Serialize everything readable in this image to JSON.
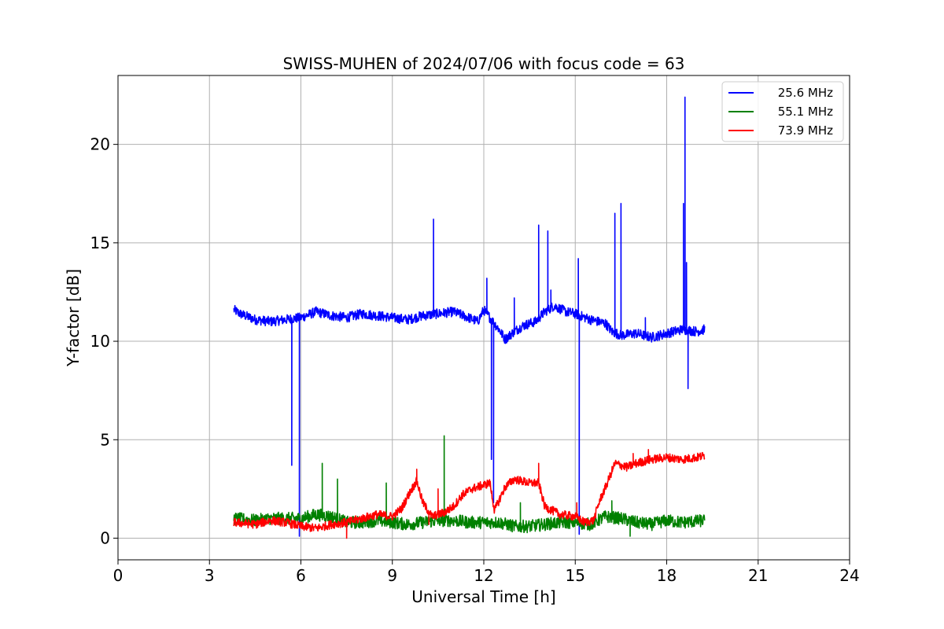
{
  "chart_data": {
    "type": "line",
    "title": "SWISS-MUHEN of 2024/07/06 with focus code = 63",
    "xlabel": "Universal Time [h]",
    "ylabel": "Y-factor [dB]",
    "xlim": [
      0,
      24
    ],
    "ylim": [
      -1.1,
      23.5
    ],
    "xticks": [
      0,
      3,
      6,
      9,
      12,
      15,
      18,
      21,
      24
    ],
    "yticks": [
      0,
      5,
      10,
      15,
      20
    ],
    "grid": true,
    "legend_position": "top-right",
    "series": [
      {
        "name": "25.6 MHz",
        "color": "#0000ff",
        "base": [
          [
            3.8,
            11.6
          ],
          [
            4.0,
            11.4
          ],
          [
            4.5,
            11.1
          ],
          [
            5.0,
            11.0
          ],
          [
            5.5,
            11.1
          ],
          [
            6.0,
            11.2
          ],
          [
            6.5,
            11.5
          ],
          [
            7.0,
            11.3
          ],
          [
            7.5,
            11.2
          ],
          [
            8.0,
            11.4
          ],
          [
            8.5,
            11.3
          ],
          [
            9.0,
            11.2
          ],
          [
            9.5,
            11.1
          ],
          [
            10.0,
            11.3
          ],
          [
            10.5,
            11.4
          ],
          [
            11.0,
            11.5
          ],
          [
            11.5,
            11.2
          ],
          [
            11.8,
            11.0
          ],
          [
            12.0,
            11.6
          ],
          [
            12.2,
            11.2
          ],
          [
            12.5,
            10.6
          ],
          [
            12.7,
            10.1
          ],
          [
            13.0,
            10.5
          ],
          [
            13.3,
            10.8
          ],
          [
            13.7,
            11.0
          ],
          [
            14.0,
            11.5
          ],
          [
            14.3,
            11.8
          ],
          [
            14.7,
            11.5
          ],
          [
            15.0,
            11.4
          ],
          [
            15.5,
            11.1
          ],
          [
            16.0,
            10.9
          ],
          [
            16.2,
            10.5
          ],
          [
            16.5,
            10.3
          ],
          [
            17.0,
            10.4
          ],
          [
            17.5,
            10.2
          ],
          [
            18.0,
            10.4
          ],
          [
            18.5,
            10.6
          ],
          [
            19.0,
            10.5
          ],
          [
            19.25,
            10.6
          ]
        ],
        "noise": 0.25,
        "spikes": [
          [
            5.7,
            3.7
          ],
          [
            5.95,
            0.1
          ],
          [
            10.35,
            16.2
          ],
          [
            12.1,
            13.2
          ],
          [
            12.25,
            4.0
          ],
          [
            12.32,
            1.8
          ],
          [
            13.0,
            12.2
          ],
          [
            13.8,
            15.9
          ],
          [
            14.1,
            15.6
          ],
          [
            14.2,
            12.6
          ],
          [
            15.1,
            14.2
          ],
          [
            15.13,
            0.2
          ],
          [
            16.3,
            16.5
          ],
          [
            16.5,
            17.0
          ],
          [
            17.3,
            11.2
          ],
          [
            18.55,
            17.0
          ],
          [
            18.6,
            22.4
          ],
          [
            18.65,
            14.0
          ],
          [
            18.7,
            7.6
          ]
        ]
      },
      {
        "name": "55.1 MHz",
        "color": "#008000",
        "base": [
          [
            3.8,
            1.0
          ],
          [
            4.5,
            0.9
          ],
          [
            5.0,
            1.0
          ],
          [
            5.5,
            1.0
          ],
          [
            6.0,
            1.0
          ],
          [
            6.5,
            1.2
          ],
          [
            7.0,
            1.1
          ],
          [
            7.5,
            0.8
          ],
          [
            8.0,
            0.8
          ],
          [
            8.5,
            0.9
          ],
          [
            9.0,
            0.8
          ],
          [
            9.5,
            0.7
          ],
          [
            10.0,
            0.8
          ],
          [
            10.5,
            0.9
          ],
          [
            11.0,
            0.9
          ],
          [
            11.5,
            0.8
          ],
          [
            12.0,
            0.8
          ],
          [
            12.5,
            0.8
          ],
          [
            13.0,
            0.6
          ],
          [
            13.5,
            0.6
          ],
          [
            14.0,
            0.7
          ],
          [
            14.5,
            0.8
          ],
          [
            15.0,
            0.8
          ],
          [
            15.5,
            0.7
          ],
          [
            16.0,
            1.1
          ],
          [
            16.5,
            1.0
          ],
          [
            17.0,
            0.8
          ],
          [
            17.5,
            0.7
          ],
          [
            18.0,
            0.9
          ],
          [
            18.5,
            0.8
          ],
          [
            19.25,
            0.9
          ]
        ],
        "noise": 0.32,
        "spikes": [
          [
            6.7,
            3.8
          ],
          [
            7.2,
            3.0
          ],
          [
            8.8,
            2.8
          ],
          [
            10.7,
            5.2
          ],
          [
            13.2,
            1.8
          ],
          [
            16.2,
            1.9
          ],
          [
            16.8,
            0.1
          ]
        ]
      },
      {
        "name": "73.9 MHz",
        "color": "#ff0000",
        "base": [
          [
            3.8,
            0.8
          ],
          [
            4.5,
            0.7
          ],
          [
            5.0,
            0.9
          ],
          [
            5.5,
            0.8
          ],
          [
            6.0,
            0.6
          ],
          [
            6.5,
            0.5
          ],
          [
            7.0,
            0.7
          ],
          [
            7.5,
            0.8
          ],
          [
            8.0,
            1.0
          ],
          [
            8.5,
            1.2
          ],
          [
            9.0,
            1.1
          ],
          [
            9.3,
            1.5
          ],
          [
            9.6,
            2.4
          ],
          [
            9.8,
            2.9
          ],
          [
            10.0,
            1.8
          ],
          [
            10.3,
            1.1
          ],
          [
            10.7,
            1.3
          ],
          [
            11.0,
            1.6
          ],
          [
            11.3,
            2.2
          ],
          [
            11.6,
            2.5
          ],
          [
            12.0,
            2.7
          ],
          [
            12.2,
            2.8
          ],
          [
            12.35,
            1.4
          ],
          [
            12.7,
            2.6
          ],
          [
            13.0,
            3.0
          ],
          [
            13.5,
            2.8
          ],
          [
            13.8,
            2.8
          ],
          [
            14.0,
            1.6
          ],
          [
            14.5,
            1.2
          ],
          [
            15.0,
            1.1
          ],
          [
            15.3,
            0.8
          ],
          [
            15.6,
            0.9
          ],
          [
            15.8,
            1.9
          ],
          [
            16.0,
            2.6
          ],
          [
            16.3,
            3.8
          ],
          [
            16.7,
            3.6
          ],
          [
            17.0,
            3.8
          ],
          [
            17.5,
            4.0
          ],
          [
            18.0,
            4.1
          ],
          [
            18.5,
            4.0
          ],
          [
            19.0,
            4.1
          ],
          [
            19.25,
            4.2
          ]
        ],
        "noise": 0.22,
        "spikes": [
          [
            7.5,
            0.0
          ],
          [
            9.8,
            3.5
          ],
          [
            10.2,
            0.7
          ],
          [
            10.5,
            2.5
          ],
          [
            13.8,
            3.8
          ],
          [
            15.05,
            1.8
          ],
          [
            16.9,
            4.3
          ],
          [
            17.4,
            4.5
          ]
        ]
      }
    ]
  }
}
